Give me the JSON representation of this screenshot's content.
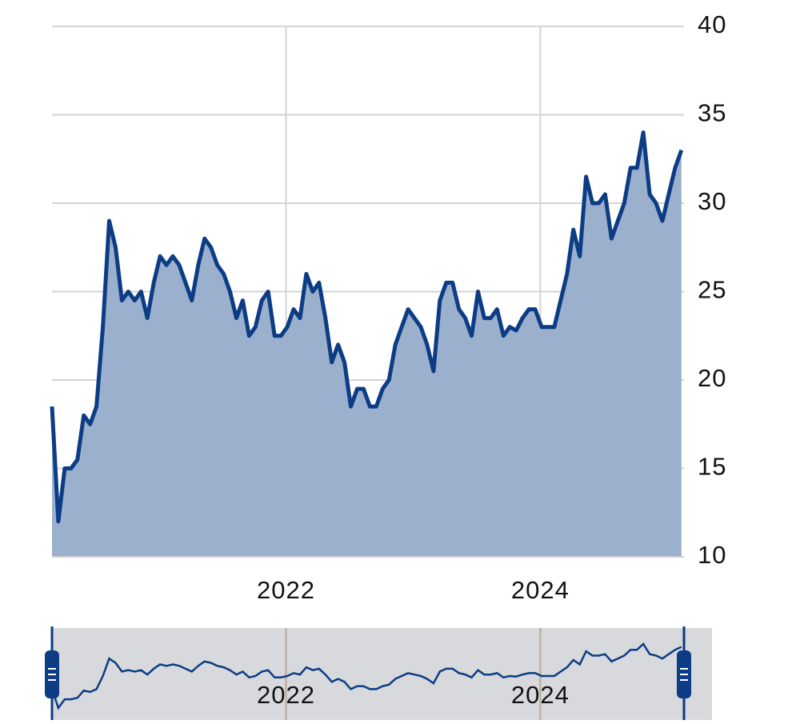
{
  "chart_data": {
    "type": "area",
    "x": [
      2020.16,
      2020.21,
      2020.26,
      2020.31,
      2020.36,
      2020.41,
      2020.46,
      2020.51,
      2020.56,
      2020.61,
      2020.66,
      2020.71,
      2020.76,
      2020.81,
      2020.86,
      2020.91,
      2020.96,
      2021.01,
      2021.06,
      2021.11,
      2021.16,
      2021.21,
      2021.26,
      2021.31,
      2021.36,
      2021.41,
      2021.46,
      2021.51,
      2021.56,
      2021.61,
      2021.66,
      2021.71,
      2021.76,
      2021.81,
      2021.86,
      2021.91,
      2021.96,
      2022.01,
      2022.06,
      2022.11,
      2022.16,
      2022.21,
      2022.26,
      2022.31,
      2022.36,
      2022.41,
      2022.46,
      2022.51,
      2022.56,
      2022.61,
      2022.66,
      2022.71,
      2022.76,
      2022.81,
      2022.86,
      2022.91,
      2022.96,
      2023.01,
      2023.06,
      2023.11,
      2023.16,
      2023.21,
      2023.26,
      2023.31,
      2023.36,
      2023.41,
      2023.46,
      2023.51,
      2023.56,
      2023.61,
      2023.66,
      2023.71,
      2023.76,
      2023.81,
      2023.86,
      2023.91,
      2023.96,
      2024.01,
      2024.06,
      2024.11,
      2024.16,
      2024.21,
      2024.26,
      2024.31,
      2024.36,
      2024.41,
      2024.46,
      2024.51,
      2024.56,
      2024.61,
      2024.66,
      2024.71,
      2024.76,
      2024.81,
      2024.86,
      2024.91,
      2024.96,
      2025.01,
      2025.06,
      2025.11
    ],
    "series": [
      {
        "color": "#0b3c84",
        "values": [
          18.5,
          12,
          15,
          15,
          15.5,
          18,
          17.5,
          18.5,
          23,
          29,
          27.5,
          24.5,
          25,
          24.5,
          25,
          23.5,
          25.5,
          27,
          26.5,
          27,
          26.5,
          25.5,
          24.5,
          26.5,
          28,
          27.5,
          26.5,
          26,
          25,
          23.5,
          24.5,
          22.5,
          23,
          24.5,
          25,
          22.5,
          22.5,
          23,
          24,
          23.5,
          26,
          25,
          25.5,
          23.5,
          21,
          22,
          21,
          18.5,
          19.5,
          19.5,
          18.5,
          18.5,
          19.5,
          20,
          22,
          23,
          24,
          23.5,
          23,
          22,
          20.5,
          24.5,
          25.5,
          25.5,
          24,
          23.5,
          22.5,
          25,
          23.5,
          23.5,
          24,
          22.5,
          23,
          22.8,
          23.5,
          24,
          24,
          23,
          23,
          23,
          24.5,
          26,
          28.5,
          27,
          31.5,
          30,
          30,
          30.5,
          28,
          29,
          30,
          32,
          32,
          34,
          30.5,
          30,
          29,
          30.5,
          32,
          33
        ]
      }
    ],
    "xlim": [
      2020.16,
      2025.13
    ],
    "xticks": [
      2022,
      2024
    ],
    "ylim": [
      10,
      40
    ],
    "yticks": [
      10,
      15,
      20,
      25,
      30,
      35,
      40
    ],
    "grid": true
  }
}
